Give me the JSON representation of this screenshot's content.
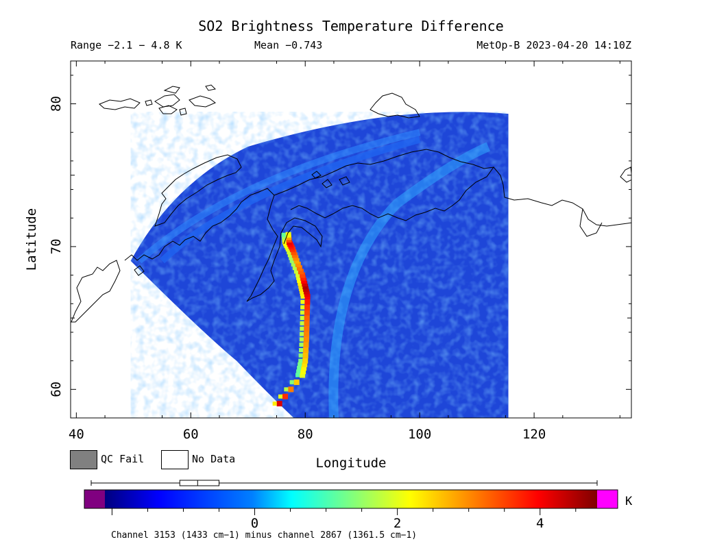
{
  "header": {
    "title": "SO2 Brightness Temperature Difference",
    "range": "Range −2.1 − 4.8 K",
    "mean": "Mean −0.743",
    "satellite_time": "MetOp-B 2023-04-20 14:10Z"
  },
  "legend": {
    "qc_fail": "QC Fail",
    "no_data": "No Data",
    "qc_fail_color": "#808080",
    "no_data_color": "#ffffff"
  },
  "colorbar": {
    "unit": "K",
    "ticks": [
      0,
      2,
      4
    ],
    "tick_labels": [
      "0",
      "2",
      "4"
    ],
    "vmin": -2.1,
    "vmax": 4.8,
    "under_color": "#800080",
    "over_color": "#ff00ff",
    "box_whisker": {
      "min": -2.1,
      "q1": -1.05,
      "median": -0.8,
      "q3": -0.5,
      "max": 4.8
    }
  },
  "footnote": "Channel 3153 (1433 cm−1) minus channel 2867 (1361.5 cm−1)",
  "chart_data": {
    "type": "heatmap",
    "title": "SO2 Brightness Temperature Difference",
    "xlabel": "Longitude",
    "ylabel": "Latitude",
    "xlim": [
      39,
      137
    ],
    "ylim": [
      58,
      83
    ],
    "xticks": [
      40,
      60,
      80,
      100,
      120
    ],
    "yticks": [
      60,
      70,
      80
    ],
    "grid": false,
    "value_unit": "K",
    "value_range": [
      -2.1,
      4.8
    ],
    "mean": -0.743,
    "swath": {
      "center_lon": 45,
      "center_lat": 32,
      "inner_radius_deg": 25.5,
      "outer_radius_deg": 48,
      "east_edge_lon": 115.5
    },
    "plume": {
      "points": [
        {
          "lon": 75.5,
          "lat": 59.0,
          "value": 4.2
        },
        {
          "lon": 79.5,
          "lat": 61.0,
          "value": 2.0
        },
        {
          "lon": 80.0,
          "lat": 62.0,
          "value": 2.5
        },
        {
          "lon": 80.2,
          "lat": 63.5,
          "value": 3.0
        },
        {
          "lon": 80.3,
          "lat": 65.0,
          "value": 3.3
        },
        {
          "lon": 80.4,
          "lat": 66.5,
          "value": 4.0
        },
        {
          "lon": 80.0,
          "lat": 67.2,
          "value": 4.5
        },
        {
          "lon": 79.5,
          "lat": 68.0,
          "value": 3.5
        },
        {
          "lon": 78.5,
          "lat": 69.0,
          "value": 2.8
        },
        {
          "lon": 77.8,
          "lat": 69.8,
          "value": 3.6
        },
        {
          "lon": 77.2,
          "lat": 70.3,
          "value": 4.1
        },
        {
          "lon": 77.0,
          "lat": 71.0,
          "value": 1.5
        }
      ]
    }
  }
}
